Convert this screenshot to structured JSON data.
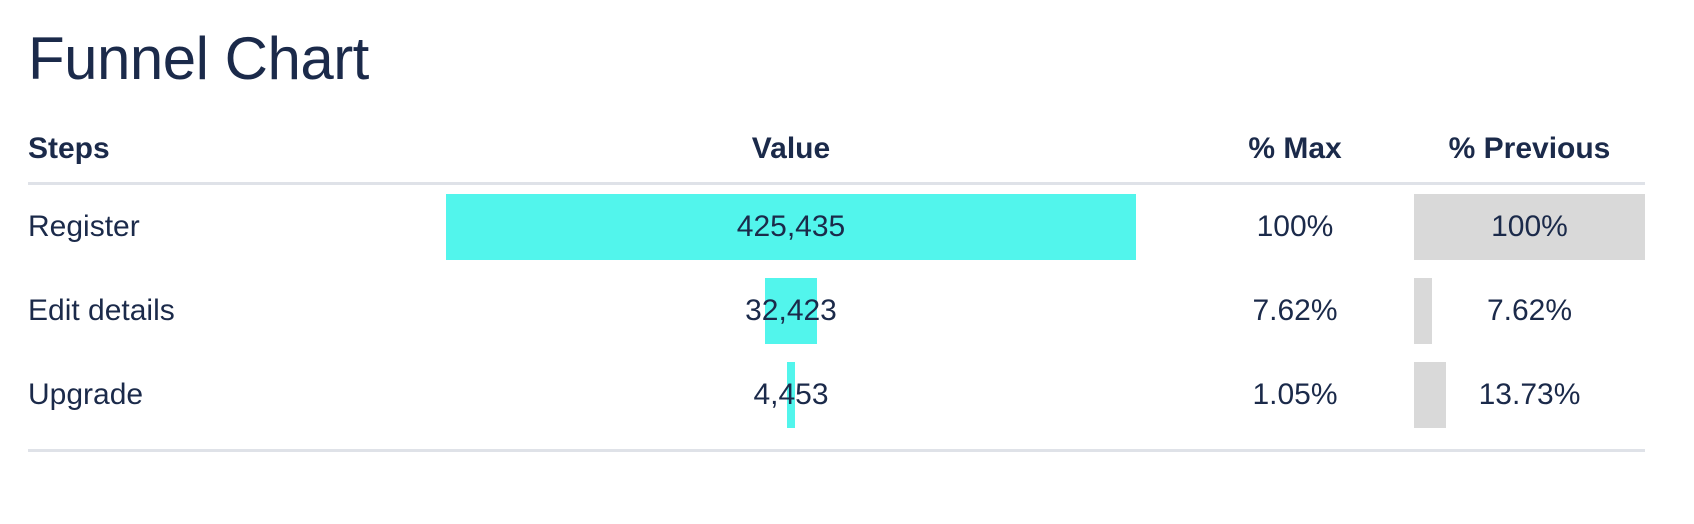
{
  "title": "Funnel Chart",
  "colors": {
    "value_bar": "#52f5ec",
    "previous_bar": "#d9d9d9",
    "text": "#1b2a4a",
    "divider": "#dfe2e8"
  },
  "headers": {
    "steps": "Steps",
    "value": "Value",
    "max": "% Max",
    "previous": "% Previous"
  },
  "chart_data": {
    "type": "table",
    "title": "Funnel Chart",
    "columns": [
      "Steps",
      "Value",
      "% Max",
      "% Previous"
    ],
    "rows": [
      {
        "step": "Register",
        "value": 425435,
        "value_label": "425,435",
        "pct_max": 100,
        "pct_max_label": "100%",
        "pct_previous": 100,
        "pct_previous_label": "100%"
      },
      {
        "step": "Edit details",
        "value": 32423,
        "value_label": "32,423",
        "pct_max": 7.62,
        "pct_max_label": "7.62%",
        "pct_previous": 7.62,
        "pct_previous_label": "7.62%"
      },
      {
        "step": "Upgrade",
        "value": 4453,
        "value_label": "4,453",
        "pct_max": 1.05,
        "pct_max_label": "1.05%",
        "pct_previous": 13.73,
        "pct_previous_label": "13.73%"
      }
    ]
  }
}
